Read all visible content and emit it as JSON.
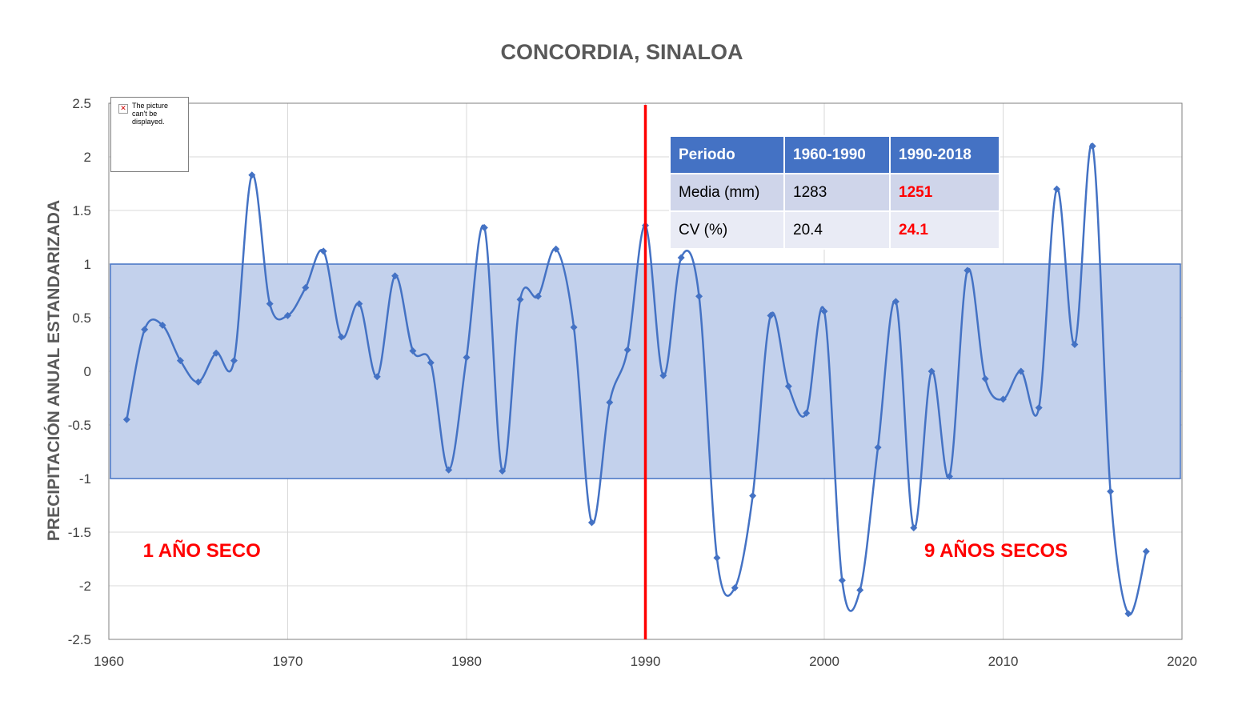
{
  "chart_data": {
    "type": "line",
    "title": "CONCORDIA, SINALOA",
    "xlabel": "",
    "ylabel": "PRECIPITACIÓN ANUAL ESTANDARIZADA",
    "xlim": [
      1960,
      2020
    ],
    "ylim": [
      -2.5,
      2.5
    ],
    "xticks": [
      "1960",
      "1970",
      "1980",
      "1990",
      "2000",
      "2010",
      "2020"
    ],
    "yticks": [
      "2.5",
      "2",
      "1.5",
      "1",
      "0.5",
      "0",
      "-0.5",
      "-1",
      "-1.5",
      "-2",
      "-2.5"
    ],
    "grid": true,
    "smooth": true,
    "series": [
      {
        "color": "#4472c4",
        "marker": "diamond",
        "x": [
          1961,
          1962,
          1963,
          1964,
          1965,
          1966,
          1967,
          1968,
          1969,
          1970,
          1971,
          1972,
          1973,
          1974,
          1975,
          1976,
          1977,
          1978,
          1979,
          1980,
          1981,
          1982,
          1983,
          1984,
          1985,
          1986,
          1987,
          1988,
          1989,
          1990,
          1991,
          1992,
          1993,
          1994,
          1995,
          1996,
          1997,
          1998,
          1999,
          2000,
          2001,
          2002,
          2003,
          2004,
          2005,
          2006,
          2007,
          2008,
          2009,
          2010,
          2011,
          2012,
          2013,
          2014,
          2015,
          2016,
          2017,
          2018
        ],
        "y": [
          -0.45,
          0.39,
          0.43,
          0.1,
          -0.1,
          0.17,
          0.1,
          1.83,
          0.63,
          0.52,
          0.78,
          1.12,
          0.32,
          0.63,
          -0.05,
          0.89,
          0.19,
          0.08,
          -0.92,
          0.13,
          1.34,
          -0.93,
          0.67,
          0.7,
          1.14,
          0.41,
          -1.41,
          -0.29,
          0.2,
          1.36,
          -0.04,
          1.06,
          0.7,
          -1.74,
          -2.02,
          -1.16,
          0.52,
          -0.14,
          -0.39,
          0.56,
          -1.95,
          -2.04,
          -0.71,
          0.65,
          -1.46,
          0.0,
          -0.98,
          0.94,
          -0.07,
          -0.26,
          0.0,
          -0.34,
          1.7,
          0.25,
          2.1,
          -1.12,
          -2.26,
          -1.68
        ]
      }
    ],
    "band": {
      "y0": -1,
      "y1": 1,
      "fill": "#c3d1ec",
      "stroke": "#4472c4"
    },
    "vline": {
      "x": 1990,
      "color": "#ff0000"
    },
    "annotations": [
      {
        "text": "1 AÑO SECO",
        "x": 1965.2,
        "y": -1.73,
        "color": "#ff0000"
      },
      {
        "text": "9 AÑOS SECOS",
        "x": 2009.6,
        "y": -1.73,
        "color": "#ff0000"
      }
    ]
  },
  "stats_table": {
    "headers": [
      "Periodo",
      "1960-1990",
      "1990-2018"
    ],
    "rows": [
      [
        "Media (mm)",
        "1283",
        "1251"
      ],
      [
        "CV (%)",
        "20.4",
        "24.1"
      ]
    ]
  },
  "image_placeholder": {
    "text": "The picture can't be displayed.",
    "icon": "broken-image-icon"
  }
}
